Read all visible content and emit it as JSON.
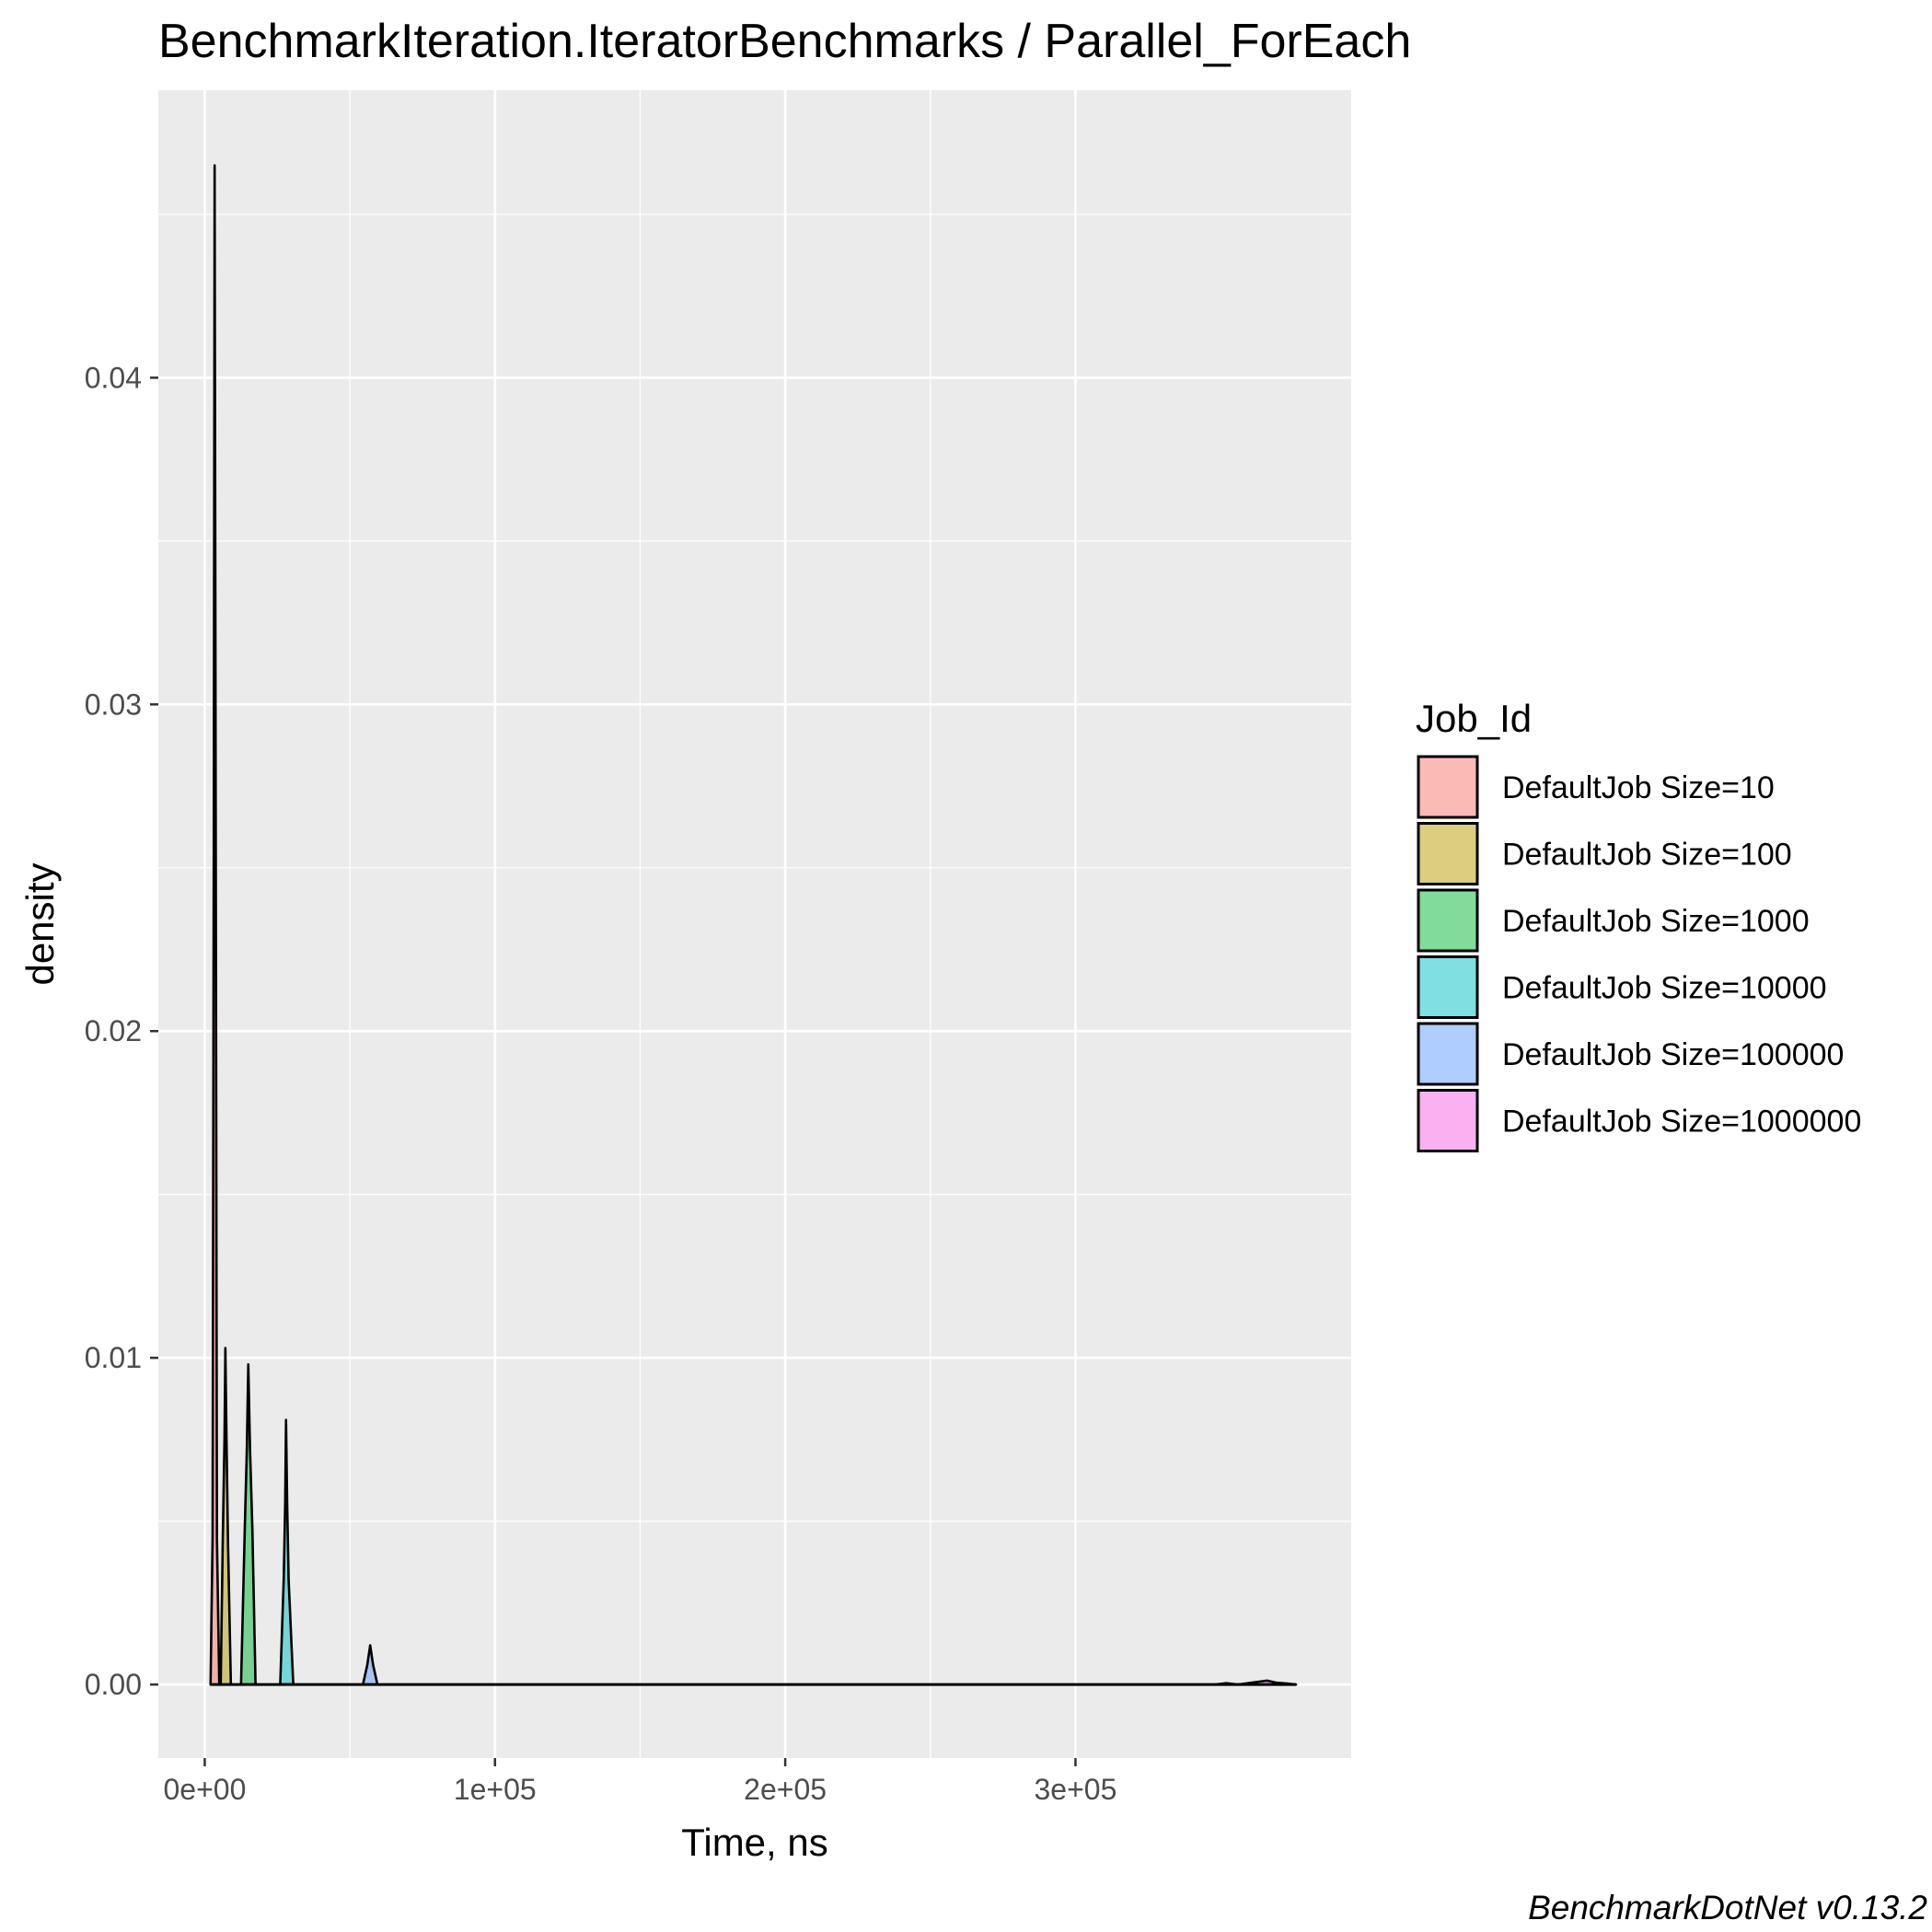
{
  "chart_data": {
    "type": "area",
    "title": "BenchmarkIteration.IteratorBenchmarks / Parallel_ForEach",
    "xlabel": "Time, ns",
    "ylabel": "density",
    "xlim": [
      -16000,
      395000
    ],
    "ylim": [
      -0.00225,
      0.0488
    ],
    "x_ticks": [
      0,
      100000,
      200000,
      300000
    ],
    "x_tick_labels": [
      "0e+00",
      "1e+05",
      "2e+05",
      "3e+05"
    ],
    "y_ticks": [
      0,
      0.01,
      0.02,
      0.03,
      0.04
    ],
    "y_tick_labels": [
      "0.00",
      "0.01",
      "0.02",
      "0.03",
      "0.04"
    ],
    "grid": true,
    "legend_title": "Job_Id",
    "legend_position": "right",
    "caption": "BenchmarkDotNet v0.13.2",
    "series": [
      {
        "name": "DefaultJob Size=10",
        "color": "#F8766D",
        "points": [
          [
            2000,
            0
          ],
          [
            2700,
            0.0045
          ],
          [
            3100,
            0.0256
          ],
          [
            3400,
            0.0465
          ],
          [
            3800,
            0.0256
          ],
          [
            4200,
            0.0045
          ],
          [
            5000,
            0
          ]
        ]
      },
      {
        "name": "DefaultJob Size=100",
        "color": "#B79F00",
        "points": [
          [
            5500,
            0
          ],
          [
            6200,
            0.0044
          ],
          [
            6800,
            0.0075
          ],
          [
            7100,
            0.0103
          ],
          [
            7500,
            0.0075
          ],
          [
            8000,
            0.0044
          ],
          [
            9000,
            0
          ]
        ]
      },
      {
        "name": "DefaultJob Size=1000",
        "color": "#00BA38",
        "points": [
          [
            12500,
            0
          ],
          [
            13800,
            0.0048
          ],
          [
            14500,
            0.0072
          ],
          [
            15000,
            0.0098
          ],
          [
            15600,
            0.0072
          ],
          [
            16400,
            0.0048
          ],
          [
            17500,
            0
          ]
        ]
      },
      {
        "name": "DefaultJob Size=10000",
        "color": "#00BFC4",
        "points": [
          [
            26000,
            0
          ],
          [
            27200,
            0.0032
          ],
          [
            27700,
            0.0055
          ],
          [
            28000,
            0.0081
          ],
          [
            28400,
            0.0055
          ],
          [
            28900,
            0.0032
          ],
          [
            30500,
            0
          ]
        ]
      },
      {
        "name": "DefaultJob Size=100000",
        "color": "#619CFF",
        "points": [
          [
            54500,
            0
          ],
          [
            56000,
            0.0006
          ],
          [
            57000,
            0.0012
          ],
          [
            58000,
            0.0006
          ],
          [
            59500,
            0
          ]
        ]
      },
      {
        "name": "DefaultJob Size=1000000",
        "color": "#F564E3",
        "points": [
          [
            348000,
            0
          ],
          [
            352000,
            4e-05
          ],
          [
            356000,
            0
          ],
          [
            360000,
            5e-05
          ],
          [
            366000,
            0.00012
          ],
          [
            369000,
            6e-05
          ],
          [
            373000,
            3e-05
          ],
          [
            376000,
            0
          ]
        ]
      }
    ]
  }
}
